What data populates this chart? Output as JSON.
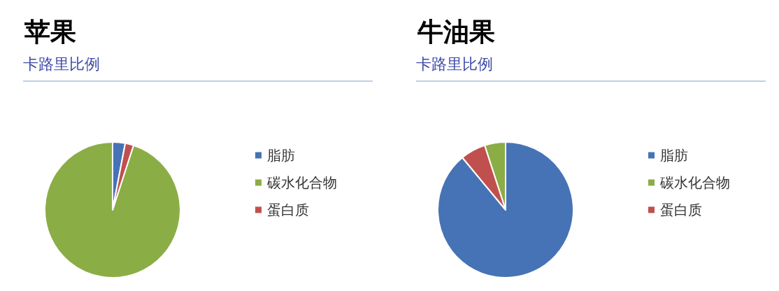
{
  "chart_data": [
    {
      "type": "pie",
      "title": "苹果",
      "subtitle": "卡路里比例",
      "categories": [
        "脂肪",
        "碳水化合物",
        "蛋白质"
      ],
      "values": [
        3,
        95,
        2
      ],
      "colors": [
        "#4673b5",
        "#8bad46",
        "#c0504d"
      ],
      "legend": "right"
    },
    {
      "type": "pie",
      "title": "牛油果",
      "subtitle": "卡路里比例",
      "categories": [
        "脂肪",
        "碳水化合物",
        "蛋白质"
      ],
      "values": [
        89,
        5,
        6
      ],
      "colors": [
        "#4673b5",
        "#8bad46",
        "#c0504d"
      ],
      "legend": "right"
    }
  ]
}
